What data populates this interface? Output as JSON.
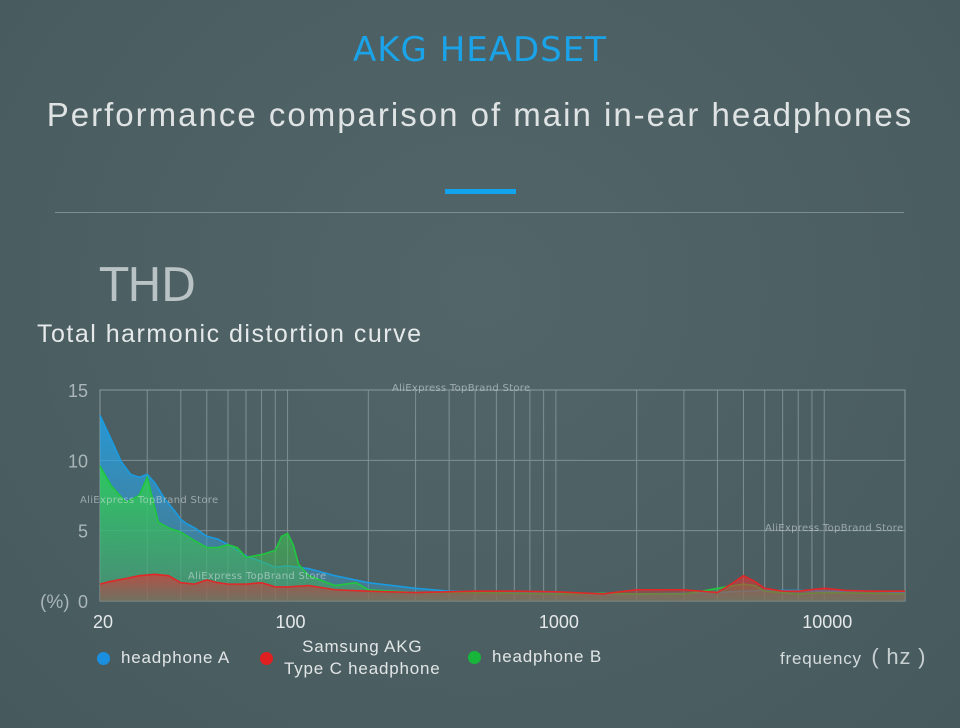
{
  "header": {
    "brand": "AKG HEADSET",
    "subtitle": "Performance comparison of main in-ear headphones"
  },
  "section": {
    "title": "THD",
    "subtitle": "Total harmonic distortion curve"
  },
  "watermarks": [
    "AliExpress TopBrand Store",
    "AliExpress TopBrand Store",
    "AliExpress TopBrand Store",
    "AliExpress TopBrand Store"
  ],
  "colors": {
    "accent": "#13a4ee",
    "headphone_a": "#1a9be0",
    "samsung_akg": "#e02828",
    "headphone_b": "#20c640"
  },
  "legend": {
    "headphone_a": "headphone A",
    "samsung_line1": "Samsung AKG",
    "samsung_line2": "Type C headphone",
    "headphone_b": "headphone B",
    "frequency": "frequency",
    "frequency_unit": "( hz )"
  },
  "chart_data": {
    "type": "area",
    "title": "THD",
    "subtitle": "Total harmonic distortion curve",
    "xlabel": "frequency ( hz )",
    "ylabel": "(%)",
    "xscale": "log",
    "xlim": [
      20,
      20000
    ],
    "ylim": [
      0,
      15
    ],
    "yticks": [
      0,
      5,
      10,
      15
    ],
    "xtick_labels": [
      "20",
      "100",
      "1000",
      "10000"
    ],
    "grid": true,
    "legend_position": "bottom",
    "series": [
      {
        "name": "headphone A",
        "color": "#1a9be0",
        "points": [
          [
            20,
            13.2
          ],
          [
            22,
            11.5
          ],
          [
            24,
            9.9
          ],
          [
            26,
            9.0
          ],
          [
            28,
            8.8
          ],
          [
            30,
            9.0
          ],
          [
            32,
            8.4
          ],
          [
            35,
            7.2
          ],
          [
            38,
            6.4
          ],
          [
            40,
            5.8
          ],
          [
            42,
            5.5
          ],
          [
            45,
            5.2
          ],
          [
            50,
            4.6
          ],
          [
            55,
            4.4
          ],
          [
            60,
            4.0
          ],
          [
            70,
            3.2
          ],
          [
            80,
            2.8
          ],
          [
            90,
            2.4
          ],
          [
            100,
            2.5
          ],
          [
            120,
            2.3
          ],
          [
            150,
            1.8
          ],
          [
            200,
            1.3
          ],
          [
            300,
            0.9
          ],
          [
            400,
            0.7
          ],
          [
            500,
            0.65
          ],
          [
            700,
            0.6
          ],
          [
            1000,
            0.55
          ],
          [
            1500,
            0.5
          ],
          [
            2000,
            0.5
          ],
          [
            3000,
            0.55
          ],
          [
            4000,
            0.6
          ],
          [
            5000,
            0.7
          ],
          [
            6000,
            0.75
          ],
          [
            8000,
            0.75
          ],
          [
            10000,
            0.7
          ],
          [
            15000,
            0.7
          ],
          [
            20000,
            0.6
          ]
        ]
      },
      {
        "name": "Samsung AKG Type C headphone",
        "color": "#e02828",
        "points": [
          [
            20,
            1.2
          ],
          [
            22,
            1.4
          ],
          [
            25,
            1.6
          ],
          [
            28,
            1.8
          ],
          [
            32,
            1.9
          ],
          [
            36,
            1.8
          ],
          [
            40,
            1.3
          ],
          [
            45,
            1.2
          ],
          [
            50,
            1.5
          ],
          [
            55,
            1.3
          ],
          [
            60,
            1.2
          ],
          [
            70,
            1.2
          ],
          [
            80,
            1.3
          ],
          [
            90,
            1.0
          ],
          [
            100,
            1.0
          ],
          [
            120,
            1.1
          ],
          [
            150,
            0.8
          ],
          [
            200,
            0.7
          ],
          [
            300,
            0.6
          ],
          [
            500,
            0.7
          ],
          [
            700,
            0.7
          ],
          [
            1000,
            0.65
          ],
          [
            1500,
            0.5
          ],
          [
            2000,
            0.8
          ],
          [
            3000,
            0.8
          ],
          [
            4000,
            0.6
          ],
          [
            4500,
            1.2
          ],
          [
            5000,
            1.8
          ],
          [
            5500,
            1.4
          ],
          [
            6000,
            0.9
          ],
          [
            7000,
            0.7
          ],
          [
            8000,
            0.7
          ],
          [
            10000,
            0.9
          ],
          [
            12000,
            0.75
          ],
          [
            15000,
            0.7
          ],
          [
            20000,
            0.7
          ]
        ]
      },
      {
        "name": "headphone B",
        "color": "#20c640",
        "points": [
          [
            20,
            9.6
          ],
          [
            22,
            8.2
          ],
          [
            25,
            7.0
          ],
          [
            28,
            7.5
          ],
          [
            30,
            8.8
          ],
          [
            33,
            5.6
          ],
          [
            36,
            5.2
          ],
          [
            40,
            4.9
          ],
          [
            45,
            4.3
          ],
          [
            50,
            3.8
          ],
          [
            55,
            3.8
          ],
          [
            60,
            4.0
          ],
          [
            65,
            3.8
          ],
          [
            70,
            3.1
          ],
          [
            80,
            3.3
          ],
          [
            90,
            3.6
          ],
          [
            95,
            4.6
          ],
          [
            100,
            4.8
          ],
          [
            105,
            4.0
          ],
          [
            110,
            2.6
          ],
          [
            120,
            1.8
          ],
          [
            150,
            1.1
          ],
          [
            180,
            1.3
          ],
          [
            200,
            0.8
          ],
          [
            300,
            0.6
          ],
          [
            500,
            0.6
          ],
          [
            700,
            0.55
          ],
          [
            1000,
            0.5
          ],
          [
            1500,
            0.55
          ],
          [
            2000,
            0.5
          ],
          [
            3000,
            0.5
          ],
          [
            3500,
            0.7
          ],
          [
            4000,
            0.9
          ],
          [
            5000,
            1.2
          ],
          [
            5500,
            1.1
          ],
          [
            6000,
            0.7
          ],
          [
            8000,
            0.5
          ],
          [
            10000,
            0.6
          ],
          [
            15000,
            0.55
          ],
          [
            20000,
            0.5
          ]
        ]
      }
    ]
  }
}
